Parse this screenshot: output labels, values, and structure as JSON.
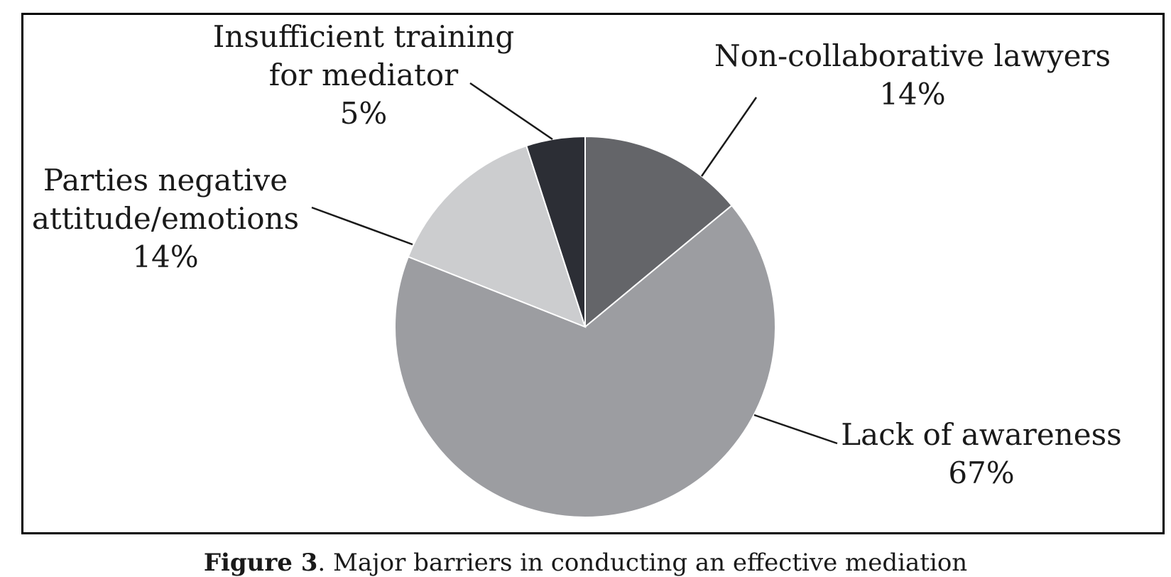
{
  "chart_data": {
    "type": "pie",
    "start_angle_deg": 0,
    "direction": "clockwise",
    "slices": [
      {
        "label_lines": [
          "Non-collaborative lawyers"
        ],
        "value": 14,
        "value_label": "14%",
        "color": "#646569"
      },
      {
        "label_lines": [
          "Lack of awareness"
        ],
        "value": 67,
        "value_label": "67%",
        "color": "#9c9da1"
      },
      {
        "label_lines": [
          "Parties negative",
          "attitude/emotions"
        ],
        "value": 14,
        "value_label": "14%",
        "color": "#cccdcf"
      },
      {
        "label_lines": [
          "Insufficient training",
          "for mediator"
        ],
        "value": 5,
        "value_label": "5%",
        "color": "#2c2e35"
      }
    ],
    "legend": "none",
    "grid": false
  },
  "caption": {
    "figure_number": "Figure 3",
    "text": ". Major barriers in conducting an effective mediation"
  }
}
